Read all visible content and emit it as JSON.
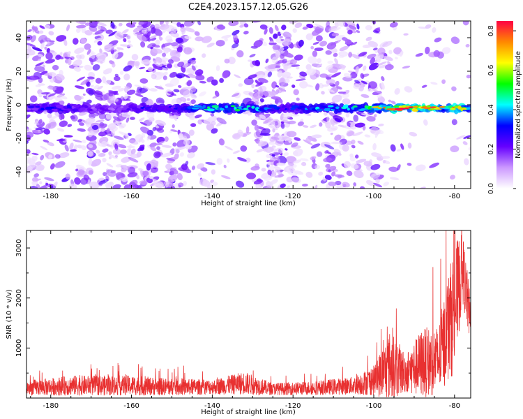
{
  "figure": {
    "title": "C2E4.2023.157.12.05.G26"
  },
  "chart_data": [
    {
      "type": "heatmap",
      "xlabel": "Height of straight line (km)",
      "ylabel": "Frequency (Hz)",
      "xlim": [
        -186,
        -76
      ],
      "ylim": [
        -50,
        50
      ],
      "xticks": [
        -180,
        -160,
        -140,
        -120,
        -100,
        -80
      ],
      "yticks": [
        -40,
        -20,
        0,
        20,
        40
      ],
      "colorbar": {
        "label": "Normalized spectral amplitude",
        "range": [
          0,
          0.85
        ],
        "ticks": [
          0.0,
          0.2,
          0.4,
          0.6,
          0.8
        ],
        "colors": [
          "#ffffff",
          "#cc99ff",
          "#6600ff",
          "#0000ff",
          "#00ffff",
          "#00ff00",
          "#ffff00",
          "#ff8800",
          "#ff0044"
        ]
      },
      "band": {
        "center_frequency_hz": -2,
        "profile": [
          {
            "x": -186,
            "amp": 0.25
          },
          {
            "x": -182,
            "amp": 0.32
          },
          {
            "x": -176,
            "amp": 0.3
          },
          {
            "x": -170,
            "amp": 0.22
          },
          {
            "x": -164,
            "amp": 0.2
          },
          {
            "x": -158,
            "amp": 0.3
          },
          {
            "x": -152,
            "amp": 0.3
          },
          {
            "x": -146,
            "amp": 0.35
          },
          {
            "x": -140,
            "amp": 0.5
          },
          {
            "x": -134,
            "amp": 0.5
          },
          {
            "x": -128,
            "amp": 0.42
          },
          {
            "x": -122,
            "amp": 0.3
          },
          {
            "x": -116,
            "amp": 0.4
          },
          {
            "x": -110,
            "amp": 0.45
          },
          {
            "x": -104,
            "amp": 0.48
          },
          {
            "x": -98,
            "amp": 0.58
          },
          {
            "x": -94,
            "amp": 0.82
          },
          {
            "x": -90,
            "amp": 0.7
          },
          {
            "x": -86,
            "amp": 0.75
          },
          {
            "x": -82,
            "amp": 0.6
          },
          {
            "x": -79,
            "amp": 0.85
          },
          {
            "x": -77,
            "amp": 0.5
          }
        ]
      },
      "background_streaks_x": [
        -183,
        -170,
        -163,
        -155,
        -148,
        -126,
        -122,
        -108,
        -101
      ]
    },
    {
      "type": "line",
      "xlabel": "Height of straight line (km)",
      "ylabel": "SNR (10 * v/v)",
      "xlim": [
        -186,
        -76
      ],
      "ylim": [
        0,
        3350
      ],
      "xticks": [
        -180,
        -160,
        -140,
        -120,
        -100,
        -80
      ],
      "yticks": [
        1000,
        2000,
        3000
      ],
      "series": [
        {
          "color": "#e83030",
          "envelope": [
            {
              "x": -186,
              "base": 200,
              "spread": 150
            },
            {
              "x": -175,
              "base": 250,
              "spread": 200
            },
            {
              "x": -160,
              "base": 250,
              "spread": 200
            },
            {
              "x": -150,
              "base": 220,
              "spread": 170
            },
            {
              "x": -140,
              "base": 220,
              "spread": 150
            },
            {
              "x": -132,
              "base": 300,
              "spread": 230
            },
            {
              "x": -125,
              "base": 180,
              "spread": 120
            },
            {
              "x": -115,
              "base": 200,
              "spread": 140
            },
            {
              "x": -105,
              "base": 250,
              "spread": 180
            },
            {
              "x": -100,
              "base": 350,
              "spread": 300
            },
            {
              "x": -96,
              "base": 650,
              "spread": 700
            },
            {
              "x": -92,
              "base": 500,
              "spread": 400
            },
            {
              "x": -88,
              "base": 700,
              "spread": 700
            },
            {
              "x": -84,
              "base": 750,
              "spread": 700
            },
            {
              "x": -80,
              "base": 1800,
              "spread": 1300
            },
            {
              "x": -78,
              "base": 2600,
              "spread": 700
            },
            {
              "x": -76,
              "base": 1500,
              "spread": 500
            }
          ]
        }
      ]
    }
  ]
}
